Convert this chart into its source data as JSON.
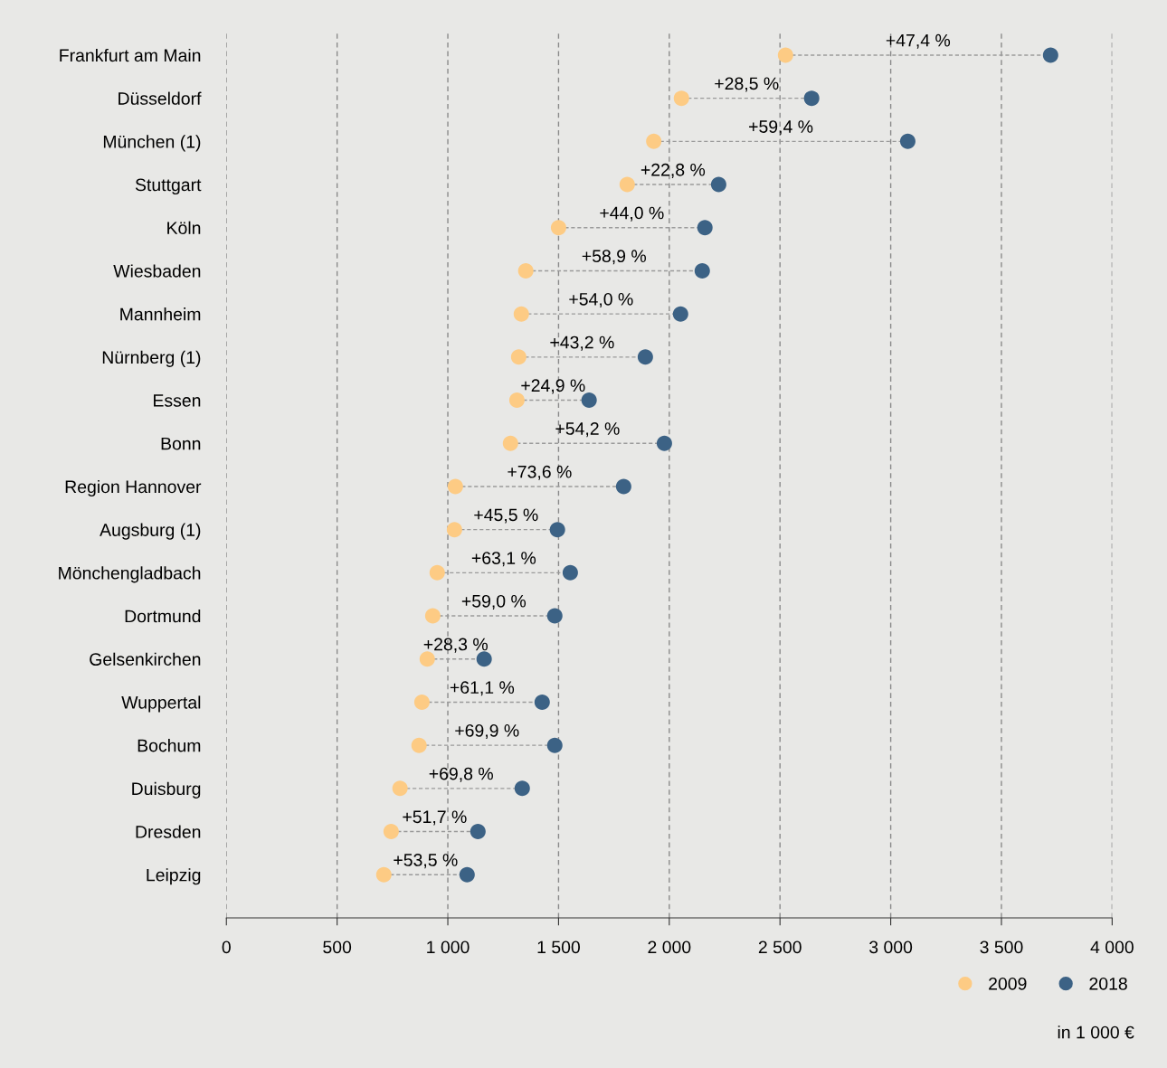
{
  "chart_data": {
    "type": "scatter",
    "orientation": "horizontal",
    "categories": [
      "Frankfurt am Main",
      "Düsseldorf",
      "München (1)",
      "Stuttgart",
      "Köln",
      "Wiesbaden",
      "Mannheim",
      "Nürnberg (1)",
      "Essen",
      "Bonn",
      "Region Hannover",
      "Augsburg (1)",
      "Mönchengladbach",
      "Dortmund",
      "Gelsenkirchen",
      "Wuppertal",
      "Bochum",
      "Duisburg",
      "Dresden",
      "Leipzig"
    ],
    "series": [
      {
        "name": "2009",
        "color": "#fdcb84",
        "values": [
          2525,
          2055,
          1930,
          1810,
          1500,
          1352,
          1332,
          1320,
          1312,
          1283,
          1034,
          1030,
          952,
          932,
          907,
          883,
          870,
          784,
          744,
          711
        ]
      },
      {
        "name": "2018",
        "color": "#3c6285",
        "values": [
          3722,
          2643,
          3077,
          2223,
          2161,
          2149,
          2051,
          1892,
          1638,
          1978,
          1794,
          1495,
          1553,
          1483,
          1164,
          1426,
          1483,
          1336,
          1136,
          1087
        ]
      }
    ],
    "xlim": [
      0,
      4000
    ],
    "xticks": [
      0,
      500,
      {
        "value": 1000,
        "label": "1 000"
      },
      {
        "value": 1500,
        "label": "1 500"
      },
      {
        "value": 2000,
        "label": "2 000"
      },
      {
        "value": 2500,
        "label": "2 500"
      },
      {
        "value": 3000,
        "label": "3 000"
      },
      {
        "value": 3500,
        "label": "3 500"
      },
      {
        "value": 4000,
        "label": "4 000"
      }
    ],
    "grid": "x",
    "marker": "circle",
    "legend": "bottom right",
    "annotations": [
      "+47,4 %",
      "+28,5 %",
      "+59,4 %",
      "+22,8 %",
      "+44,0 %",
      "+58,9 %",
      "+54,0 %",
      "+43,2 %",
      "+24,9 %",
      "+54,2 %",
      "+73,6 %",
      "+45,5 %",
      "+63,1 %",
      "+59,0 %",
      "+28,3 %",
      "+61,1 %",
      "+69,9 %",
      "+69,8 %",
      "+51,7 %",
      "+53,5 %",
      "in 1 000 €"
    ]
  }
}
